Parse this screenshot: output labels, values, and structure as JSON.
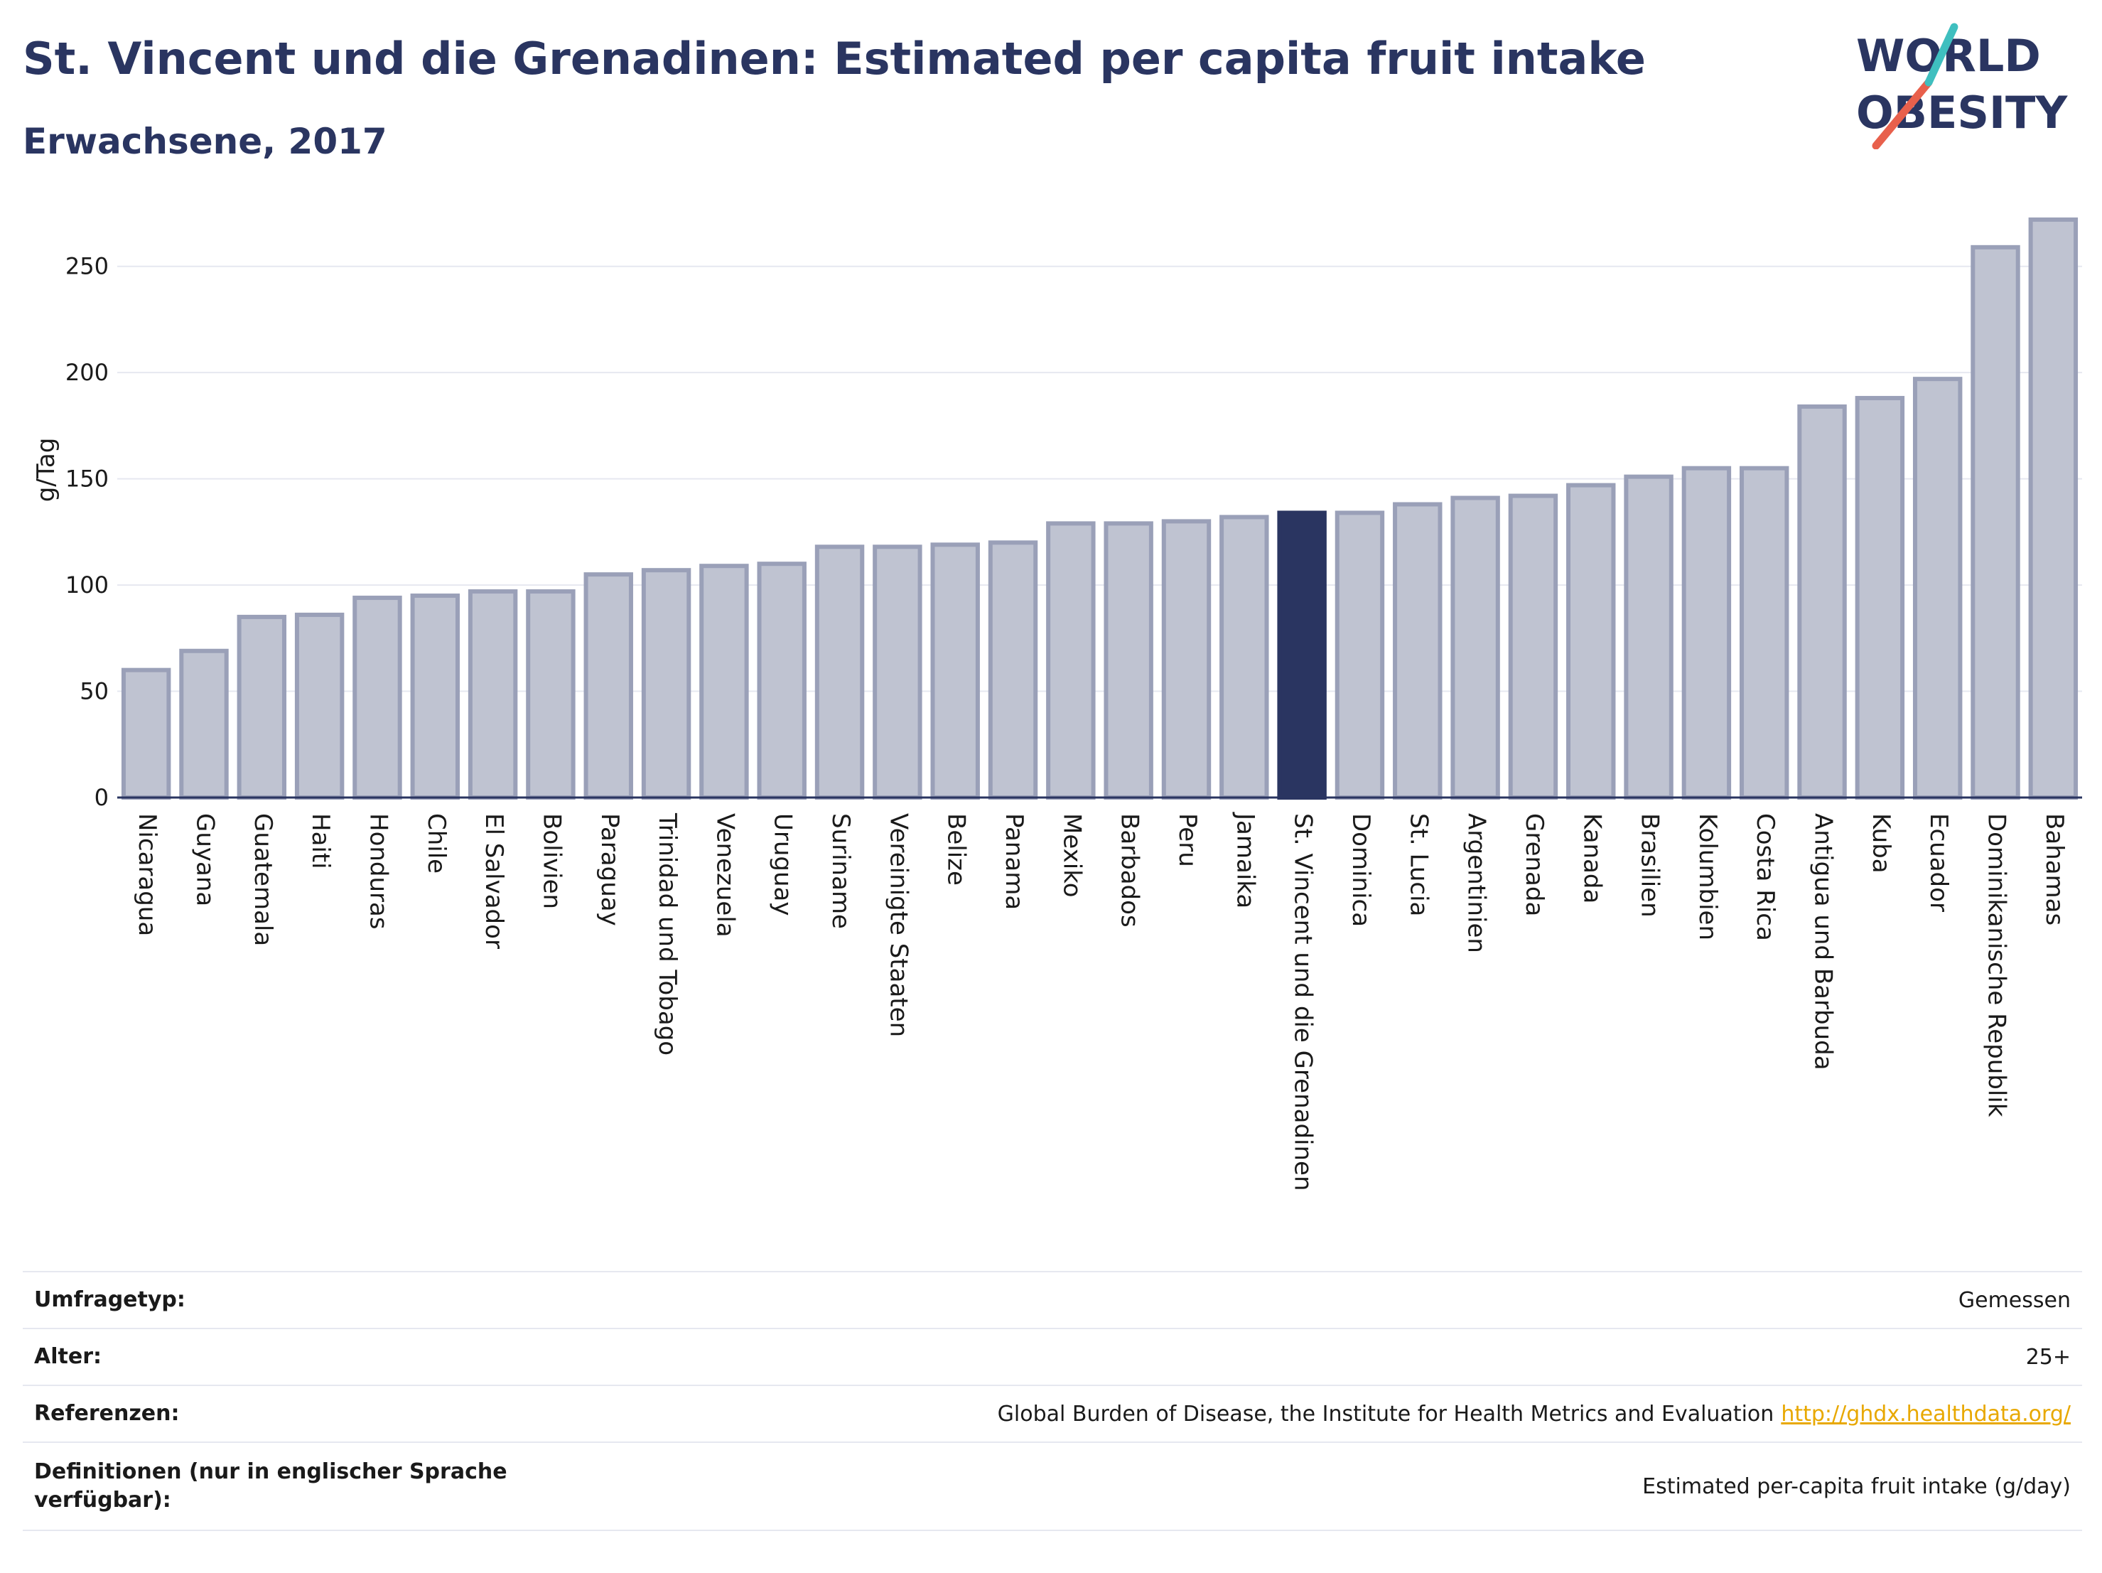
{
  "header": {
    "title": "St. Vincent und die Grenadinen: Estimated per capita fruit intake",
    "subtitle": "Erwachsene, 2017"
  },
  "logo": {
    "line1": "WORLD",
    "line2": "OBESITY",
    "colors": {
      "text": "#2a3561",
      "slash_red": "#e8604c",
      "slash_teal": "#3fbfbf"
    }
  },
  "chart_data": {
    "type": "bar",
    "title": "",
    "xlabel": "",
    "ylabel": "g/Tag",
    "ylim": [
      0,
      275
    ],
    "yticks": [
      0,
      50,
      100,
      150,
      200,
      250
    ],
    "grid": true,
    "highlight": "St. Vincent und die Grenadinen",
    "colors": {
      "bar": "#bfc3d1",
      "bar_edge": "#9aa0b8",
      "highlight": "#2a3561"
    },
    "categories": [
      "Nicaragua",
      "Guyana",
      "Guatemala",
      "Haiti",
      "Honduras",
      "Chile",
      "El Salvador",
      "Bolivien",
      "Paraguay",
      "Trinidad und Tobago",
      "Venezuela",
      "Uruguay",
      "Suriname",
      "Vereinigte Staaten",
      "Belize",
      "Panama",
      "Mexiko",
      "Barbados",
      "Peru",
      "Jamaika",
      "St. Vincent und die Grenadinen",
      "Dominica",
      "St. Lucia",
      "Argentinien",
      "Grenada",
      "Kanada",
      "Brasilien",
      "Kolumbien",
      "Costa Rica",
      "Antigua und Barbuda",
      "Kuba",
      "Ecuador",
      "Dominikanische Republik",
      "Bahamas"
    ],
    "values": [
      60,
      69,
      85,
      86,
      94,
      95,
      97,
      97,
      105,
      107,
      109,
      110,
      118,
      118,
      119,
      120,
      129,
      129,
      130,
      132,
      134,
      134,
      138,
      141,
      142,
      147,
      151,
      155,
      155,
      184,
      188,
      197,
      259,
      272
    ]
  },
  "info": {
    "rows": [
      {
        "key": "Umfragetyp:",
        "value": "Gemessen"
      },
      {
        "key": "Alter:",
        "value": "25+"
      },
      {
        "key": "Referenzen:",
        "value": "Global Burden of Disease, the Institute for Health Metrics and Evaluation",
        "link": "http://ghdx.healthdata.org/"
      },
      {
        "key": "Definitionen (nur in englischer Sprache verfügbar):",
        "value": "Estimated per-capita fruit intake (g/day)"
      }
    ]
  }
}
